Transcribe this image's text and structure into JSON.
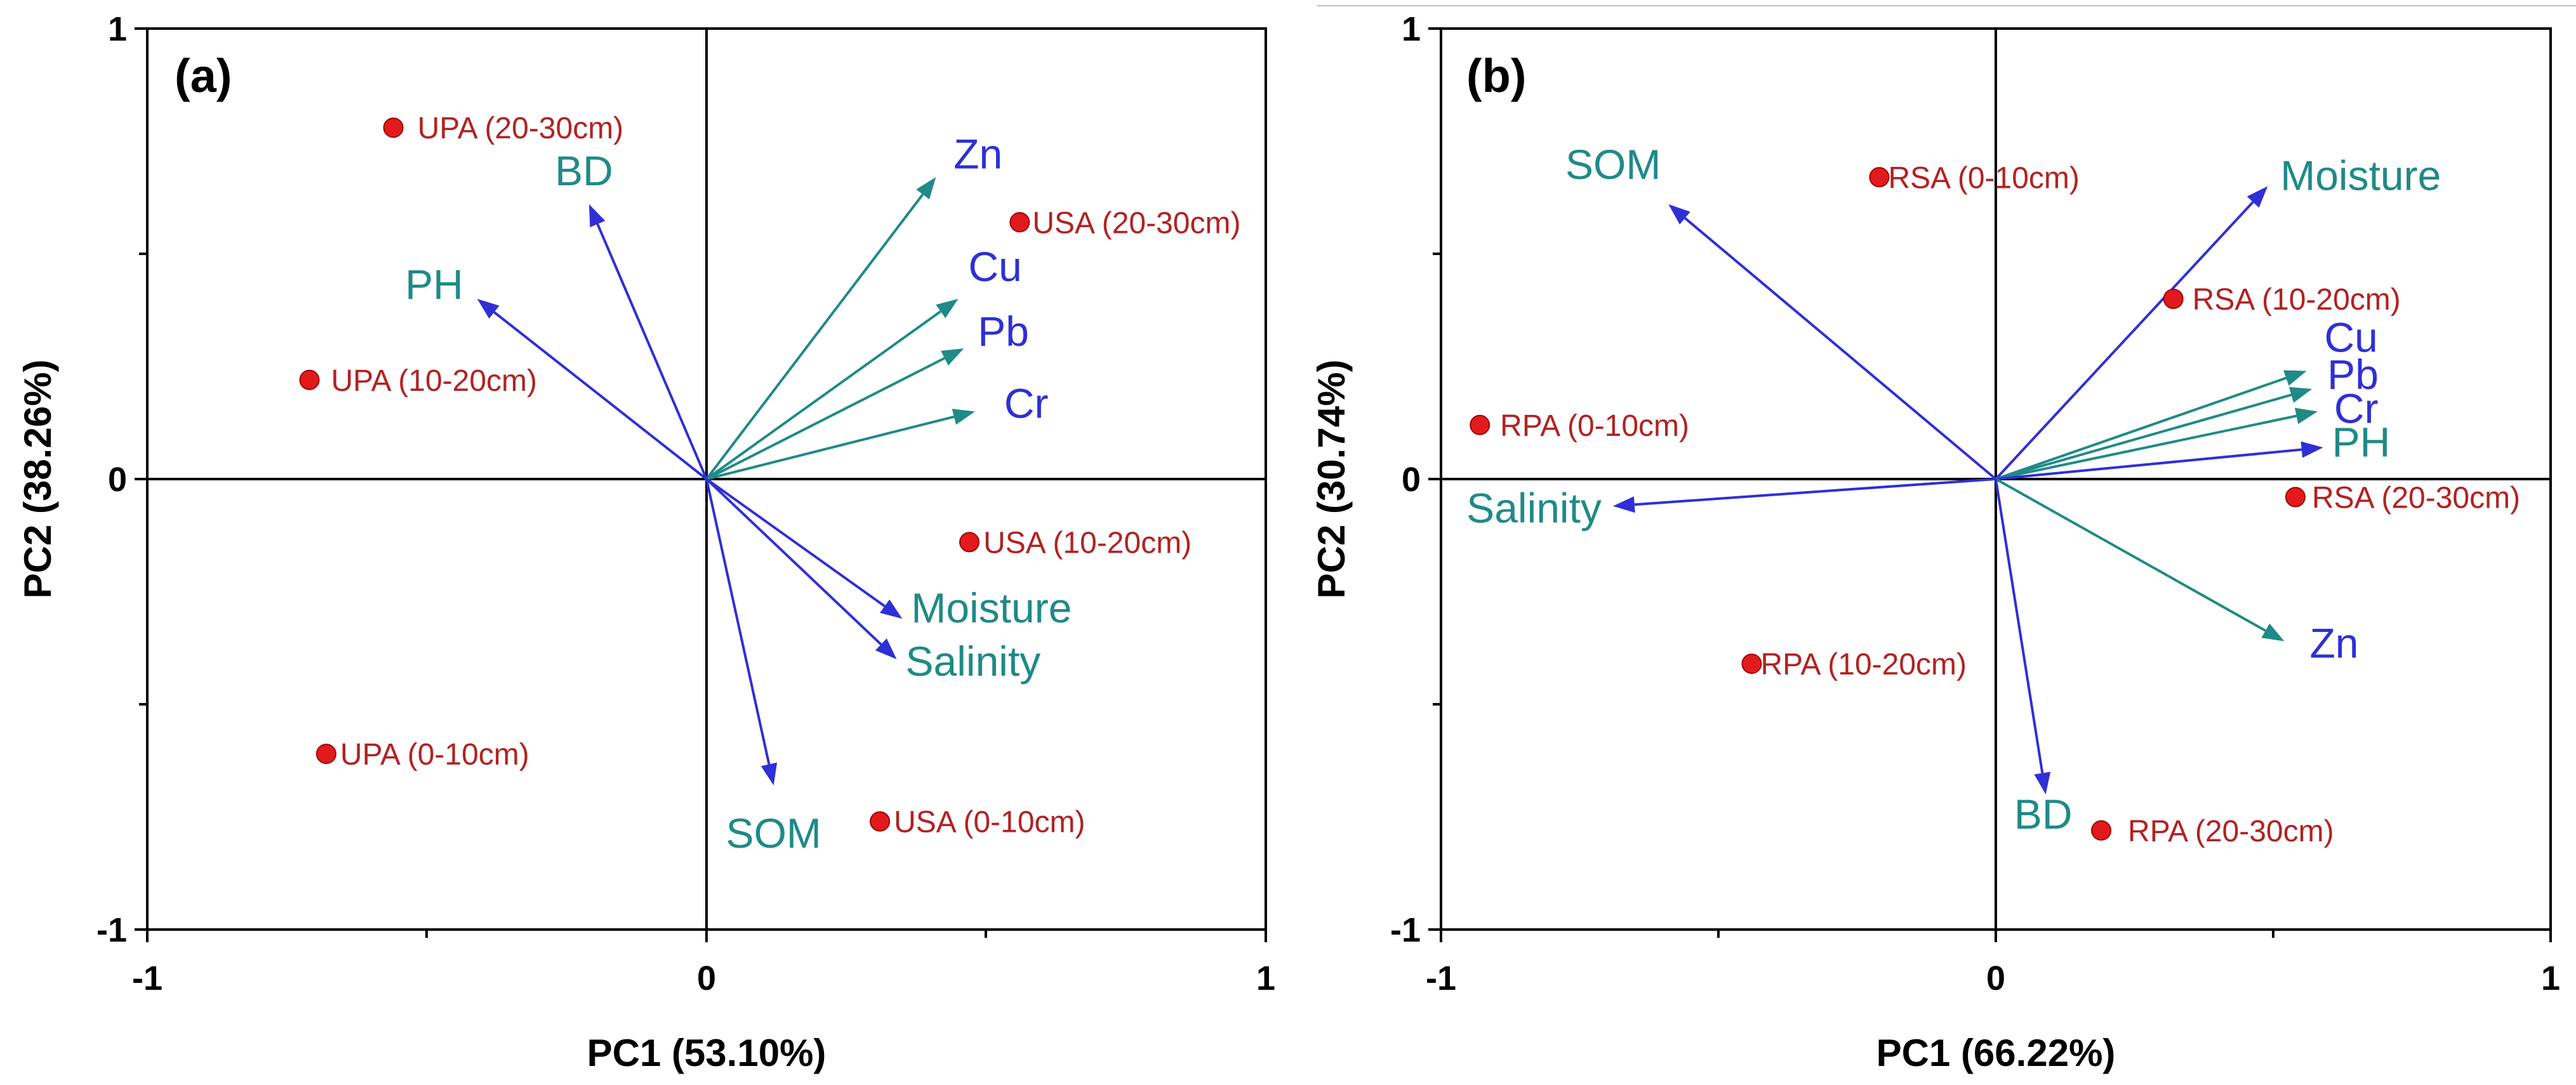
{
  "chart_data": [
    {
      "type": "scatter",
      "subtype": "pca-biplot",
      "panel_label": "(a)",
      "xlabel": "PC1 (53.10%)",
      "ylabel": "PC2 (38.26%)",
      "xlim": [
        -1,
        1
      ],
      "ylim": [
        -1,
        1
      ],
      "x_ticks": [
        -1,
        0,
        1
      ],
      "y_ticks": [
        -1,
        0,
        1
      ],
      "x_tick_labels": [
        "-1",
        "0",
        "1"
      ],
      "y_tick_labels": [
        "-1",
        "0",
        "1"
      ],
      "loadings": [
        {
          "name": "Zn",
          "x": 0.41,
          "y": 0.67,
          "color": "#1f8a87",
          "label_color": "#2f2fd6"
        },
        {
          "name": "Cu",
          "x": 0.45,
          "y": 0.4,
          "color": "#1f8a87",
          "label_color": "#2f2fd6"
        },
        {
          "name": "Pb",
          "x": 0.46,
          "y": 0.29,
          "color": "#1f8a87",
          "label_color": "#2f2fd6"
        },
        {
          "name": "Cr",
          "x": 0.48,
          "y": 0.15,
          "color": "#1f8a87",
          "label_color": "#2f2fd6"
        },
        {
          "name": "BD",
          "x": -0.21,
          "y": 0.61,
          "color": "#2f2fd6",
          "label_color": "#1f8a87"
        },
        {
          "name": "PH",
          "x": -0.41,
          "y": 0.4,
          "color": "#2f2fd6",
          "label_color": "#1f8a87"
        },
        {
          "name": "Moisture",
          "x": 0.35,
          "y": -0.31,
          "color": "#2f2fd6",
          "label_color": "#1f8a87"
        },
        {
          "name": "Salinity",
          "x": 0.34,
          "y": -0.4,
          "color": "#2f2fd6",
          "label_color": "#1f8a87"
        },
        {
          "name": "SOM",
          "x": 0.12,
          "y": -0.68,
          "color": "#2f2fd6",
          "label_color": "#1f8a87"
        }
      ],
      "scores": [
        {
          "name": "UPA (20-30cm)",
          "x": -0.56,
          "y": 0.78
        },
        {
          "name": "USA (20-30cm)",
          "x": 0.56,
          "y": 0.57
        },
        {
          "name": "UPA (10-20cm)",
          "x": -0.71,
          "y": 0.22
        },
        {
          "name": "USA (10-20cm)",
          "x": 0.47,
          "y": -0.14
        },
        {
          "name": "UPA (0-10cm)",
          "x": -0.68,
          "y": -0.61
        },
        {
          "name": "USA (0-10cm)",
          "x": 0.31,
          "y": -0.76
        }
      ]
    },
    {
      "type": "scatter",
      "subtype": "pca-biplot",
      "panel_label": "(b)",
      "xlabel": "PC1 (66.22%)",
      "ylabel": "PC2 (30.74%)",
      "xlim": [
        -1,
        1
      ],
      "ylim": [
        -1,
        1
      ],
      "x_ticks": [
        -1,
        0,
        1
      ],
      "y_ticks": [
        -1,
        0,
        1
      ],
      "x_tick_labels": [
        "-1",
        "0",
        "1"
      ],
      "y_tick_labels": [
        "-1",
        "0",
        "1"
      ],
      "loadings": [
        {
          "name": "SOM",
          "x": -0.59,
          "y": 0.61,
          "color": "#2f2fd6",
          "label_color": "#1f8a87"
        },
        {
          "name": "Moisture",
          "x": 0.49,
          "y": 0.65,
          "color": "#2f2fd6",
          "label_color": "#1f8a87"
        },
        {
          "name": "Cu",
          "x": 0.56,
          "y": 0.24,
          "color": "#1f8a87",
          "label_color": "#2f2fd6"
        },
        {
          "name": "Pb",
          "x": 0.57,
          "y": 0.2,
          "color": "#1f8a87",
          "label_color": "#2f2fd6"
        },
        {
          "name": "Cr",
          "x": 0.58,
          "y": 0.15,
          "color": "#1f8a87",
          "label_color": "#2f2fd6"
        },
        {
          "name": "PH",
          "x": 0.59,
          "y": 0.07,
          "color": "#2f2fd6",
          "label_color": "#1f8a87"
        },
        {
          "name": "Salinity",
          "x": -0.69,
          "y": -0.06,
          "color": "#2f2fd6",
          "label_color": "#1f8a87"
        },
        {
          "name": "Zn",
          "x": 0.52,
          "y": -0.36,
          "color": "#1f8a87",
          "label_color": "#2f2fd6"
        },
        {
          "name": "BD",
          "x": 0.09,
          "y": -0.7,
          "color": "#2f2fd6",
          "label_color": "#1f8a87"
        }
      ],
      "scores": [
        {
          "name": "RSA (0-10cm)",
          "x": -0.21,
          "y": 0.67
        },
        {
          "name": "RSA (10-20cm)",
          "x": 0.32,
          "y": 0.4
        },
        {
          "name": "RPA (0-10cm)",
          "x": -0.93,
          "y": 0.12
        },
        {
          "name": "RSA (20-30cm)",
          "x": 0.54,
          "y": -0.04
        },
        {
          "name": "RPA (10-20cm)",
          "x": -0.44,
          "y": -0.41
        },
        {
          "name": "RPA (20-30cm)",
          "x": 0.19,
          "y": -0.78
        }
      ]
    }
  ],
  "colors": {
    "score_point": "#e31a1c",
    "score_label": "#b22222",
    "teal": "#1f8a87",
    "blue": "#2f2fd6"
  }
}
